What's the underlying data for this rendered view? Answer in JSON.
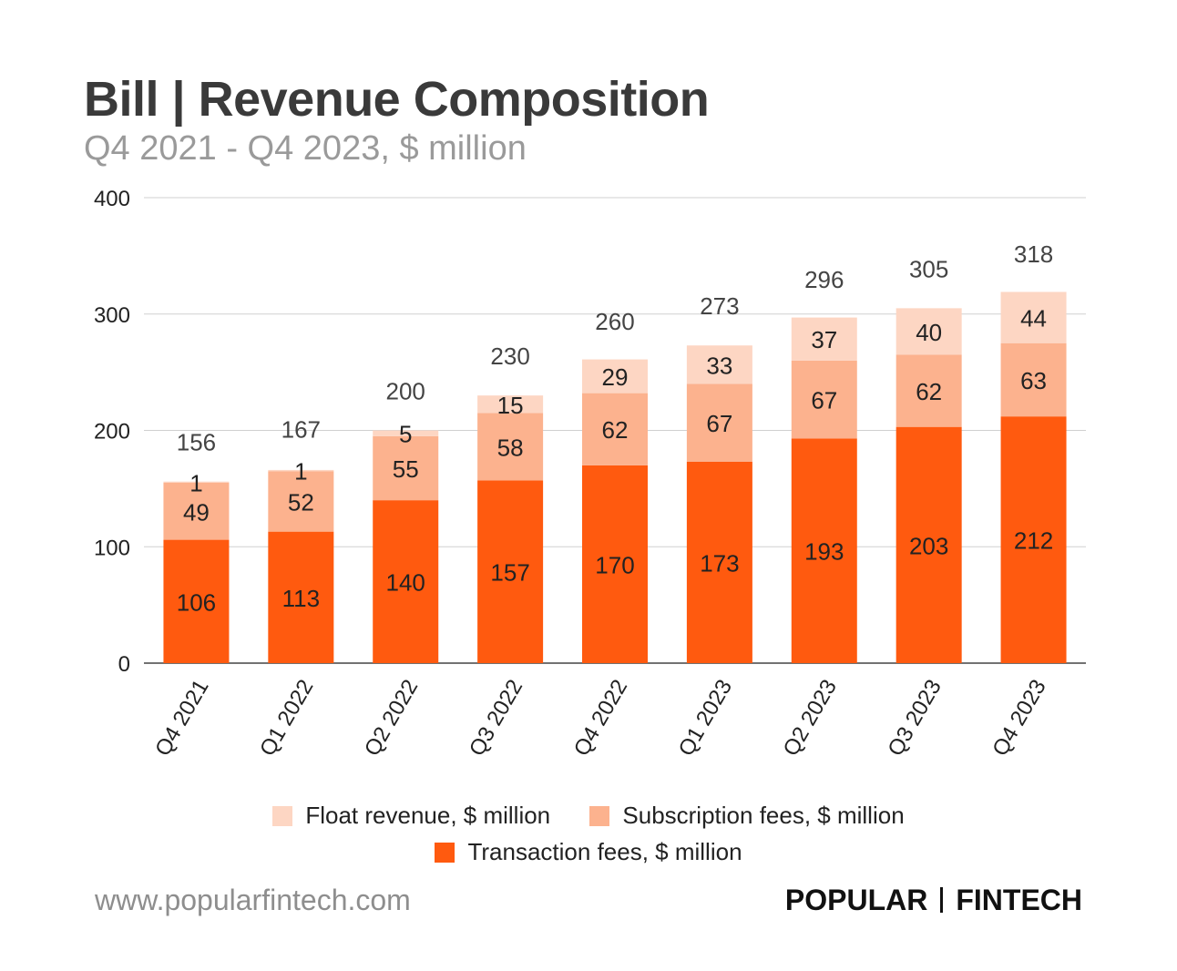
{
  "header": {
    "title": "Bill | Revenue Composition",
    "subtitle": "Q4 2021 - Q4 2023, $ million"
  },
  "chart_data": {
    "type": "bar",
    "stacked": true,
    "categories": [
      "Q4 2021",
      "Q1 2022",
      "Q2 2022",
      "Q3 2022",
      "Q4 2022",
      "Q1 2023",
      "Q2 2023",
      "Q3 2023",
      "Q4 2023"
    ],
    "series": [
      {
        "name": "Transaction fees, $ million",
        "color": "#ff5a0f",
        "values": [
          106,
          113,
          140,
          157,
          170,
          173,
          193,
          203,
          212
        ]
      },
      {
        "name": "Subscription fees, $ million",
        "color": "#fcb28e",
        "values": [
          49,
          52,
          55,
          58,
          62,
          67,
          67,
          62,
          63
        ]
      },
      {
        "name": "Float revenue, $ million",
        "color": "#fdd6c3",
        "values": [
          1,
          1,
          5,
          15,
          29,
          33,
          37,
          40,
          44
        ]
      }
    ],
    "totals": [
      156,
      167,
      200,
      230,
      260,
      273,
      296,
      305,
      318
    ],
    "ylim": [
      0,
      400
    ],
    "yticks": [
      0,
      100,
      200,
      300,
      400
    ],
    "grid": true,
    "legend_position": "bottom"
  },
  "legend": {
    "float": "Float revenue, $ million",
    "subscription": "Subscription fees, $ million",
    "transaction": "Transaction fees, $ million"
  },
  "footer": {
    "url": "www.popularfintech.com",
    "brand_left": "POPULAR",
    "brand_right": "FINTECH"
  }
}
